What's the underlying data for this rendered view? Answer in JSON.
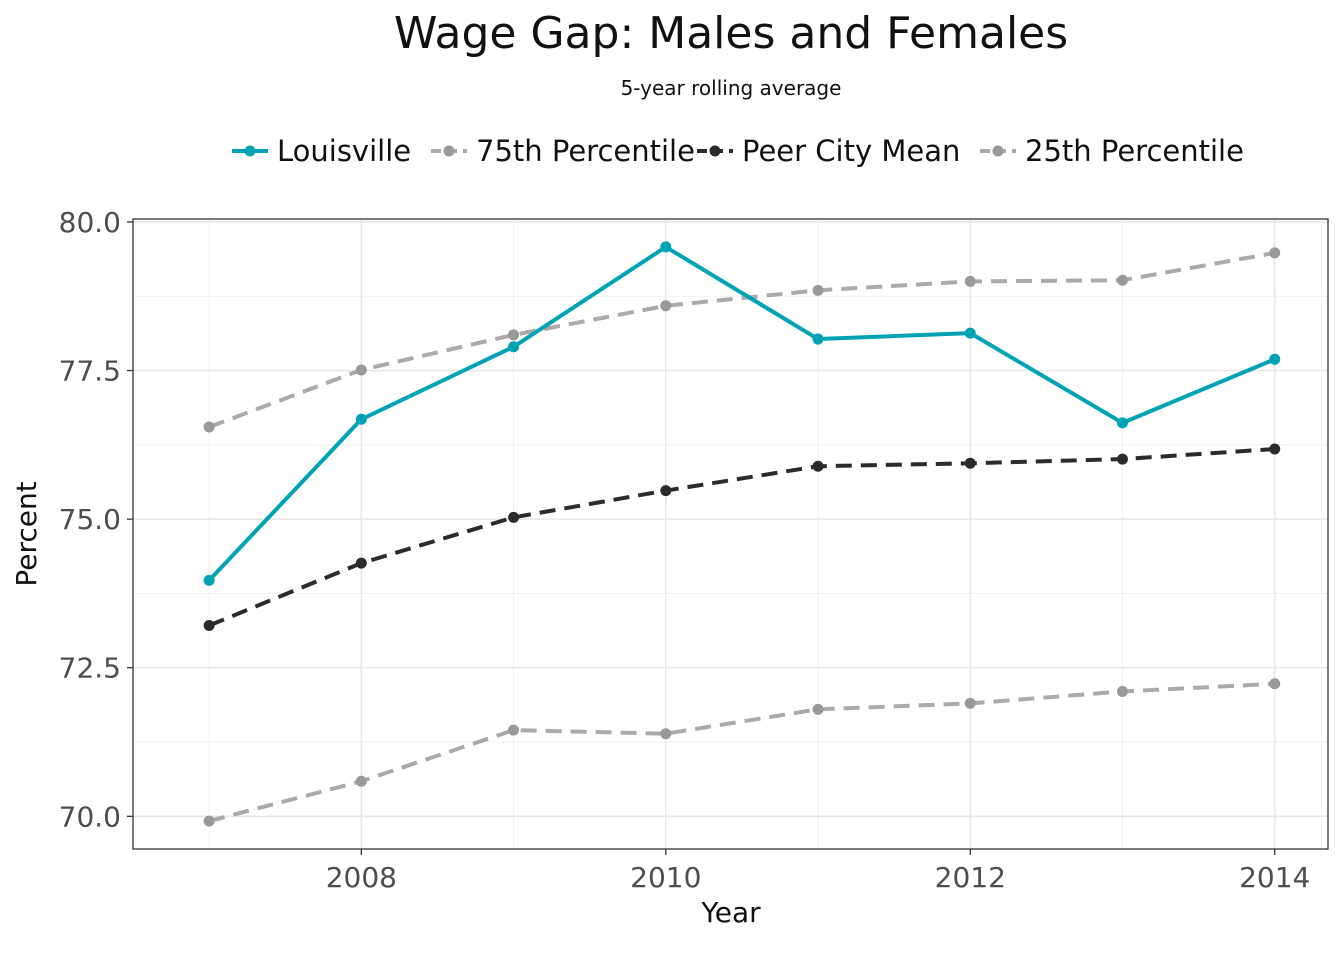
{
  "chart_data": {
    "type": "line",
    "title": "Wage Gap: Males and Females",
    "subtitle": "5-year rolling average",
    "xlabel": "Year",
    "ylabel": "Percent",
    "x": [
      2007,
      2008,
      2009,
      2010,
      2011,
      2012,
      2013,
      2014
    ],
    "xlim": [
      2006.5,
      2014.35
    ],
    "ylim": [
      69.45,
      80.05
    ],
    "x_ticks": [
      2008,
      2010,
      2012,
      2014
    ],
    "x_tick_labels": [
      "2008",
      "2010",
      "2012",
      "2014"
    ],
    "y_ticks": [
      70.0,
      72.5,
      75.0,
      77.5,
      80.0
    ],
    "y_tick_labels": [
      "70.0",
      "72.5",
      "75.0",
      "77.5",
      "80.0"
    ],
    "grid": true,
    "legend_position": "top",
    "series": [
      {
        "name": "Louisville",
        "values": [
          73.97,
          76.68,
          77.9,
          79.58,
          78.03,
          78.13,
          76.62,
          77.69
        ],
        "color": "#00a3b4",
        "style": "solid"
      },
      {
        "name": "75th Percentile",
        "values": [
          76.55,
          77.51,
          78.1,
          78.59,
          78.85,
          79.0,
          79.02,
          79.48
        ],
        "color": "#aaaaaa",
        "style": "dashed"
      },
      {
        "name": "Peer City Mean",
        "values": [
          73.21,
          74.26,
          75.03,
          75.48,
          75.89,
          75.94,
          76.01,
          76.18
        ],
        "color": "#2b2b2b",
        "style": "dashed"
      },
      {
        "name": "25th Percentile",
        "values": [
          69.92,
          70.59,
          71.45,
          71.39,
          71.8,
          71.9,
          72.1,
          72.23
        ],
        "color": "#aaaaaa",
        "style": "dashed"
      }
    ]
  }
}
